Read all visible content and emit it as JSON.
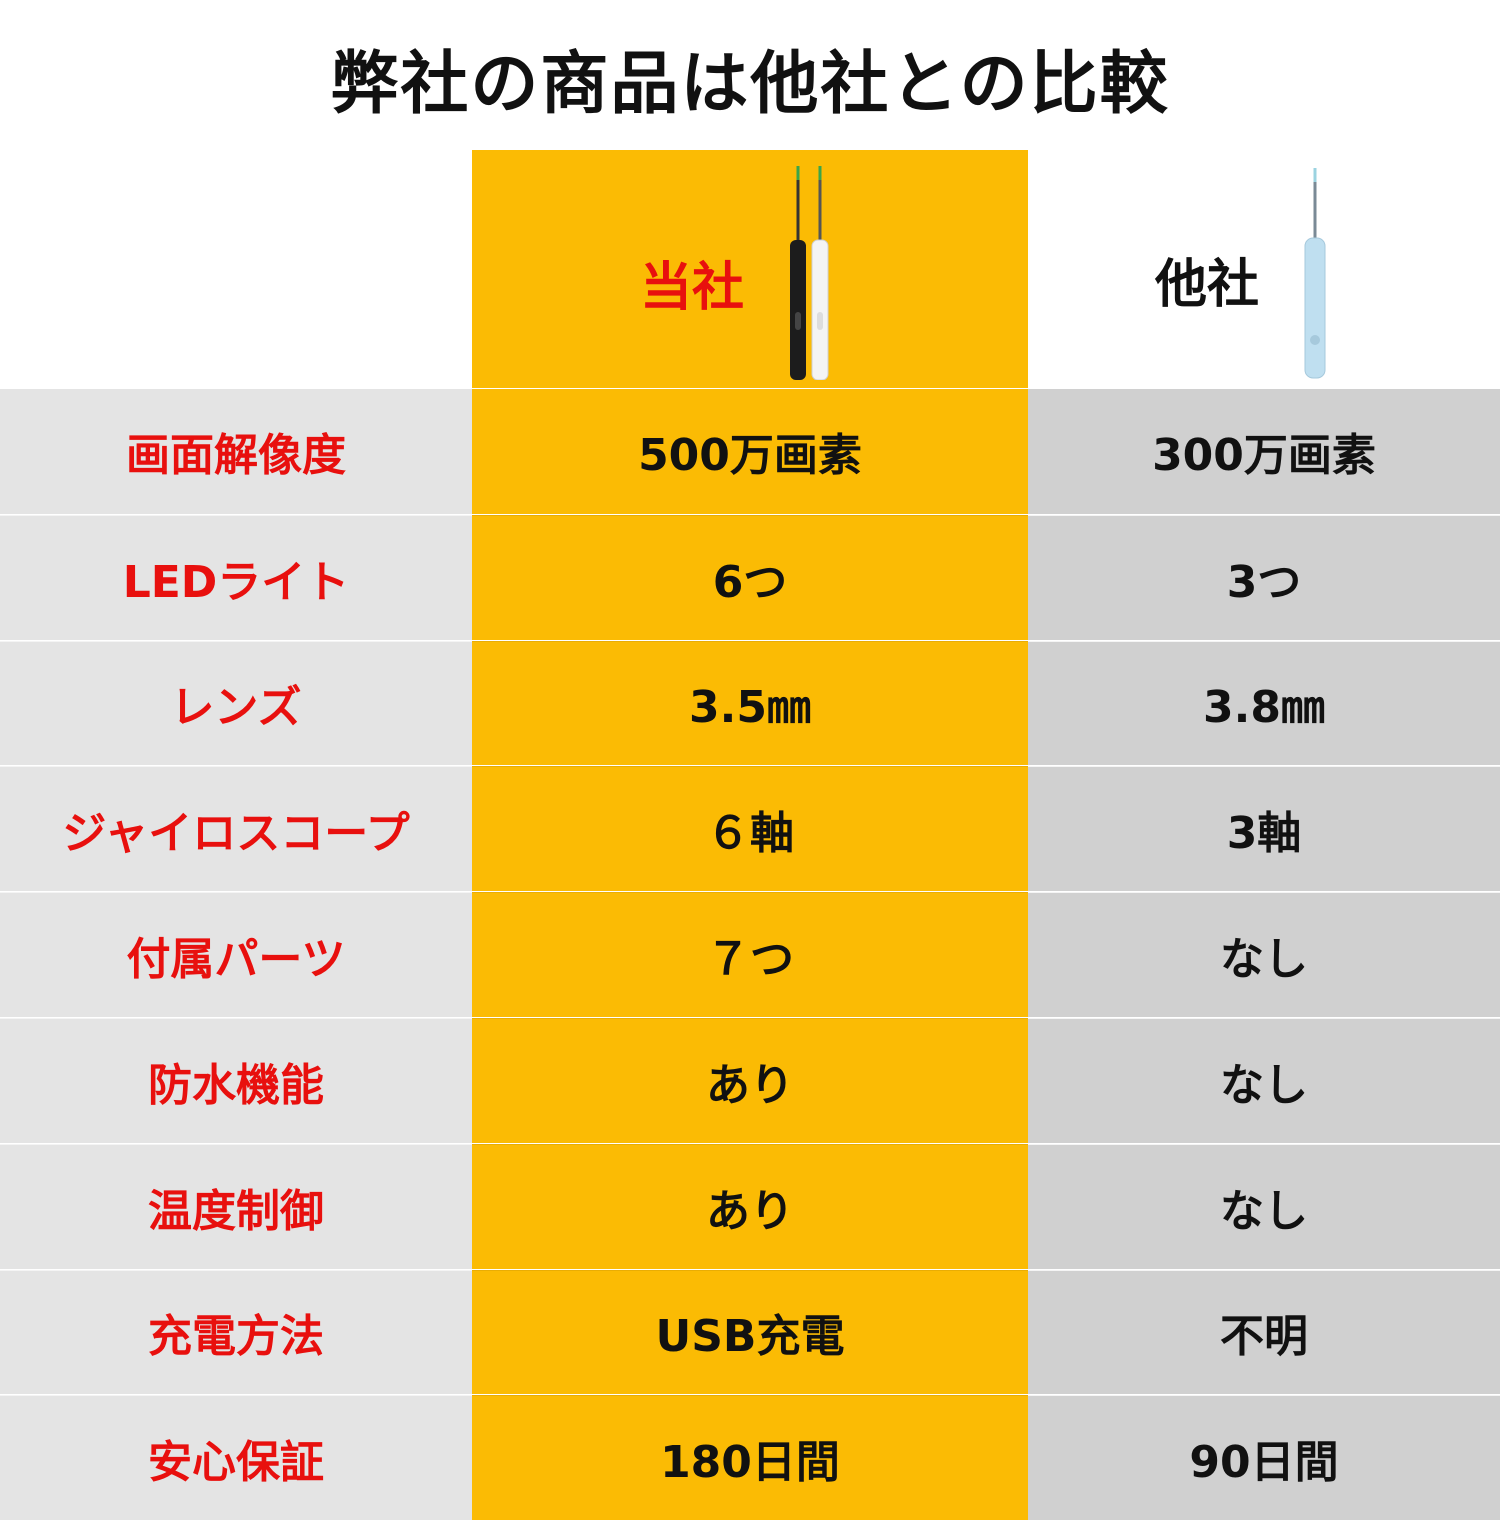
{
  "title": "弊社の商品は他社との比較",
  "header": {
    "ours_label": "当社",
    "other_label": "他社"
  },
  "rows": [
    {
      "label": "画面解像度",
      "ours": "500万画素",
      "other": "300万画素"
    },
    {
      "label": "LEDライト",
      "ours": "6つ",
      "other": "3つ"
    },
    {
      "label": "レンズ",
      "ours": "3.5㎜",
      "other": "3.8㎜"
    },
    {
      "label": "ジャイロスコープ",
      "ours": "６軸",
      "other": "3軸"
    },
    {
      "label": "付属パーツ",
      "ours": "７つ",
      "other": "なし"
    },
    {
      "label": "防水機能",
      "ours": "あり",
      "other": "なし"
    },
    {
      "label": "温度制御",
      "ours": "あり",
      "other": "なし"
    },
    {
      "label": "充電方法",
      "ours": "USB充電",
      "other": "不明"
    },
    {
      "label": "安心保証",
      "ours": "180日間",
      "other": "90日間"
    }
  ],
  "colors": {
    "highlight": "#fbbb04",
    "label_text": "#e8100e",
    "label_bg": "#e4e4e4",
    "other_bg": "#d0d0d0"
  }
}
